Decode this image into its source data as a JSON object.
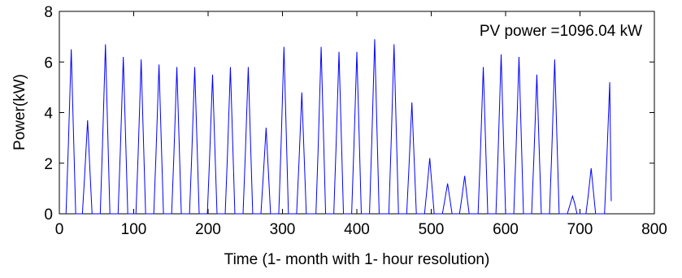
{
  "chart_data": {
    "type": "line",
    "xlabel": "Time (1- month with 1- hour resolution)",
    "ylabel": "Power(kW)",
    "annotation": "PV power =1096.04 kW",
    "xlim": [
      0,
      800
    ],
    "xticks": [
      0,
      100,
      200,
      300,
      400,
      500,
      600,
      700,
      800
    ],
    "ylim": [
      0,
      8
    ],
    "yticks": [
      0,
      2,
      4,
      6,
      8
    ],
    "series": [
      {
        "color": "#0000ff",
        "x": [
          9,
          12,
          16,
          19,
          22,
          31,
          34,
          38,
          41,
          44,
          55,
          58,
          62,
          65,
          68,
          79,
          82,
          86,
          89,
          92,
          103,
          106,
          110,
          113,
          116,
          127,
          130,
          134,
          137,
          140,
          151,
          154,
          158,
          161,
          164,
          175,
          178,
          182,
          185,
          188,
          199,
          202,
          206,
          209,
          212,
          223,
          226,
          230,
          233,
          236,
          247,
          250,
          254,
          257,
          260,
          271,
          274,
          278,
          281,
          284,
          295,
          298,
          302,
          305,
          308,
          319,
          322,
          326,
          329,
          332,
          345,
          348,
          352,
          355,
          358,
          369,
          372,
          376,
          379,
          382,
          393,
          396,
          400,
          403,
          406,
          417,
          420,
          424,
          427,
          430,
          443,
          446,
          450,
          453,
          456,
          467,
          470,
          474,
          477,
          480,
          491,
          494,
          498,
          501,
          504,
          515,
          518,
          522,
          525,
          528,
          538,
          541,
          545,
          548,
          551,
          563,
          566,
          570,
          573,
          576,
          587,
          590,
          594,
          597,
          600,
          611,
          614,
          618,
          621,
          624,
          635,
          638,
          642,
          645,
          648,
          659,
          662,
          666,
          669,
          672,
          683,
          686,
          690,
          693,
          696,
          708,
          711,
          715,
          718,
          721,
          733,
          736,
          740,
          742
        ],
        "values": [
          0,
          2.6,
          6.5,
          3.2,
          0,
          0,
          1.5,
          3.7,
          1.8,
          0,
          0,
          2.7,
          6.7,
          3.3,
          0,
          0,
          2.5,
          6.2,
          3.1,
          0,
          0,
          2.4,
          6.1,
          3.0,
          0,
          0,
          2.4,
          5.9,
          2.9,
          0,
          0,
          2.3,
          5.8,
          2.9,
          0,
          0,
          2.3,
          5.8,
          2.9,
          0,
          0,
          2.2,
          5.5,
          2.7,
          0,
          0,
          2.3,
          5.8,
          2.9,
          0,
          0,
          2.3,
          5.8,
          2.9,
          0,
          0,
          1.4,
          3.4,
          1.7,
          0,
          0,
          2.6,
          6.6,
          3.3,
          0,
          0,
          1.9,
          4.8,
          2.4,
          0,
          0,
          2.6,
          6.6,
          3.3,
          0,
          0,
          2.6,
          6.4,
          3.2,
          0,
          0,
          2.6,
          6.4,
          3.2,
          0,
          0,
          2.8,
          6.9,
          3.4,
          0,
          0,
          2.7,
          6.7,
          3.3,
          0,
          0,
          1.8,
          4.4,
          2.2,
          0,
          0,
          0.9,
          2.2,
          1.1,
          0,
          0,
          0.5,
          1.2,
          0.6,
          0,
          0,
          0.6,
          1.5,
          0.7,
          0,
          0,
          2.3,
          5.8,
          2.9,
          0,
          0,
          2.5,
          6.3,
          3.1,
          0,
          0,
          2.5,
          6.2,
          3.1,
          0,
          0,
          2.2,
          5.5,
          2.7,
          0,
          0,
          2.4,
          6.1,
          3.0,
          0,
          0,
          0.3,
          0.7,
          0.4,
          0,
          0,
          0.7,
          1.8,
          0.9,
          0,
          0,
          2.1,
          5.2,
          0.5
        ]
      }
    ]
  }
}
